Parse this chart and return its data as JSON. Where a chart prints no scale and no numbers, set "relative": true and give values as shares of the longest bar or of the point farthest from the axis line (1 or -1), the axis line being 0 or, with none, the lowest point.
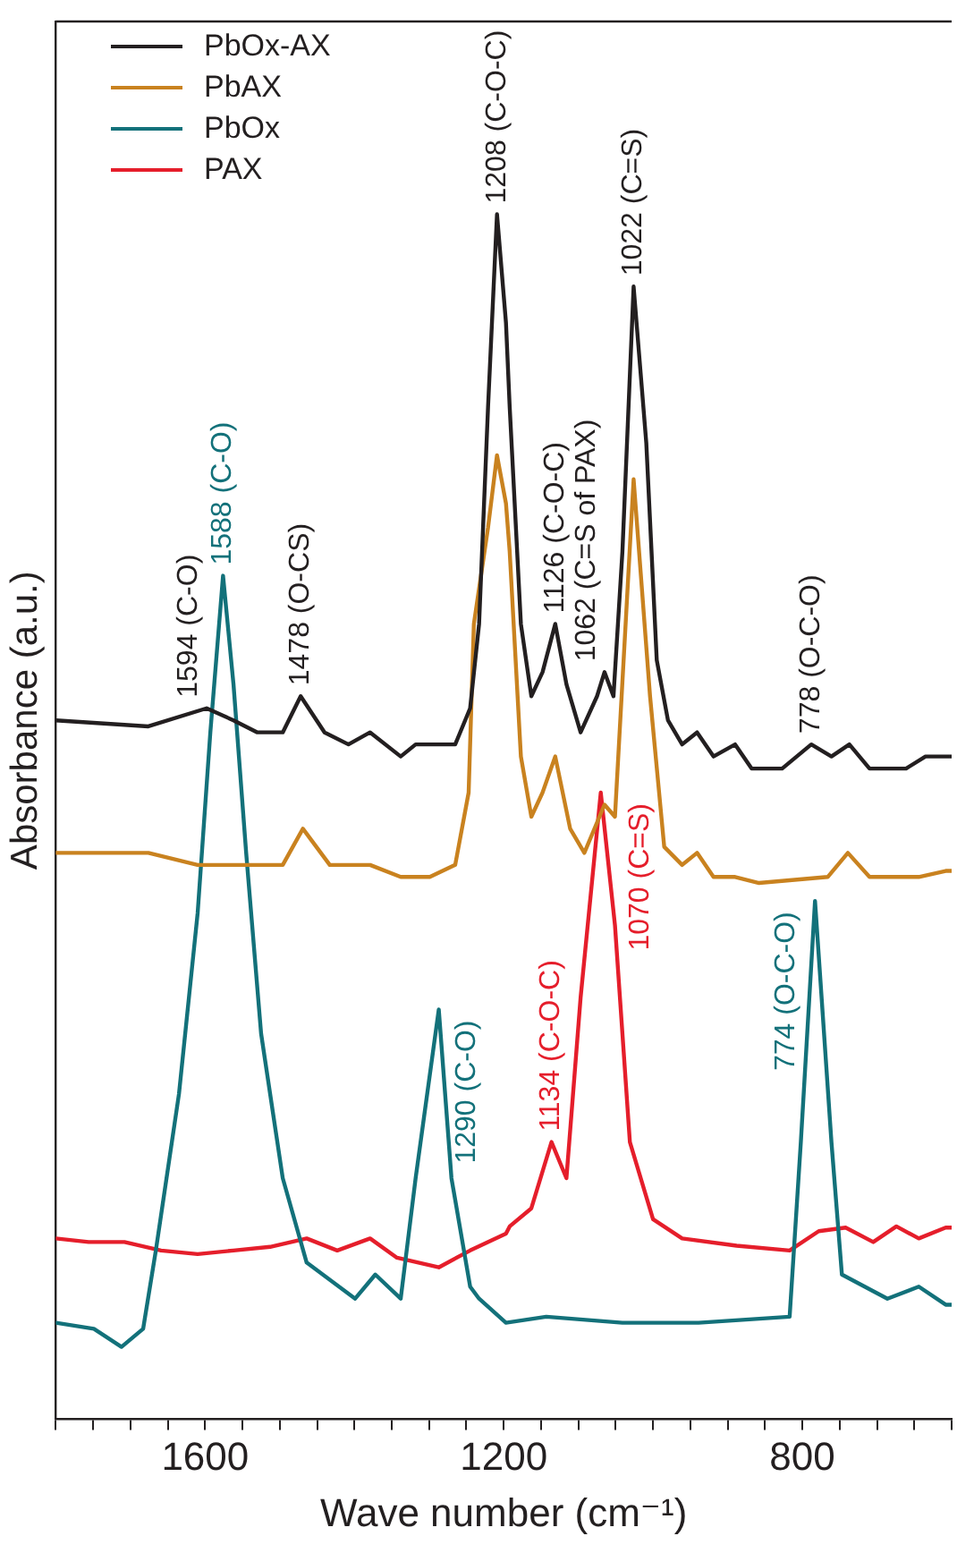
{
  "chart_data": {
    "type": "line",
    "xlabel": "Wave number (cm⁻¹)",
    "ylabel": "Absorbance (a.u.)",
    "relative": true,
    "legend": "top left",
    "tick_labels": "x",
    "xlim": [
      1800,
      600
    ],
    "xticks": [
      {
        "value": 1800,
        "label": null
      },
      {
        "value": 1750,
        "label": null
      },
      {
        "value": 1700,
        "label": null
      },
      {
        "value": 1650,
        "label": null
      },
      1600,
      {
        "value": 1550,
        "label": null
      },
      {
        "value": 1500,
        "label": null
      },
      {
        "value": 1450,
        "label": null
      },
      {
        "value": 1400,
        "label": null
      },
      {
        "value": 1350,
        "label": null
      },
      {
        "value": 1300,
        "label": null
      },
      {
        "value": 1250,
        "label": null
      },
      1200,
      {
        "value": 1150,
        "label": null
      },
      {
        "value": 1100,
        "label": null
      },
      {
        "value": 1050,
        "label": null
      },
      {
        "value": 1000,
        "label": null
      },
      {
        "value": 950,
        "label": null
      },
      {
        "value": 900,
        "label": null
      },
      {
        "value": 850,
        "label": null
      },
      800,
      {
        "value": 750,
        "label": null
      },
      {
        "value": 700,
        "label": null
      },
      {
        "value": 650,
        "label": null
      },
      {
        "value": 600,
        "label": null
      }
    ],
    "series": [
      {
        "name": "PbOx-AX",
        "color": "#231f20",
        "x": [
          1800,
          1676,
          1598,
          1562,
          1530,
          1496,
          1472,
          1440,
          1408,
          1379,
          1338,
          1318,
          1301,
          1265,
          1245,
          1233,
          1221,
          1209,
          1197,
          1192,
          1177,
          1163,
          1148,
          1131,
          1116,
          1097,
          1075,
          1065,
          1053,
          1041,
          1026,
          1009,
          995,
          980,
          961,
          941,
          919,
          890,
          868,
          827,
          788,
          761,
          737,
          710,
          661,
          635,
          608,
          600
        ],
        "values": [
          0.58,
          0.575,
          0.59,
          0.58,
          0.57,
          0.57,
          0.6,
          0.57,
          0.56,
          0.57,
          0.55,
          0.56,
          0.56,
          0.56,
          0.59,
          0.66,
          0.84,
          1.0,
          0.91,
          0.84,
          0.66,
          0.6,
          0.62,
          0.66,
          0.61,
          0.57,
          0.6,
          0.62,
          0.6,
          0.72,
          0.94,
          0.81,
          0.63,
          0.58,
          0.56,
          0.57,
          0.55,
          0.56,
          0.54,
          0.54,
          0.56,
          0.55,
          0.56,
          0.54,
          0.54,
          0.55,
          0.55,
          0.55
        ]
      },
      {
        "name": "PbAX",
        "color": "#c9821f",
        "x": [
          1800,
          1676,
          1610,
          1562,
          1496,
          1469,
          1433,
          1379,
          1338,
          1318,
          1299,
          1265,
          1247,
          1240,
          1221,
          1209,
          1197,
          1192,
          1177,
          1163,
          1148,
          1131,
          1111,
          1092,
          1065,
          1051,
          1026,
          1004,
          985,
          961,
          941,
          919,
          890,
          858,
          766,
          739,
          710,
          676,
          644,
          608,
          600
        ],
        "values": [
          0.47,
          0.47,
          0.46,
          0.46,
          0.46,
          0.49,
          0.46,
          0.46,
          0.45,
          0.45,
          0.45,
          0.46,
          0.52,
          0.66,
          0.74,
          0.8,
          0.76,
          0.72,
          0.55,
          0.5,
          0.52,
          0.55,
          0.49,
          0.47,
          0.51,
          0.5,
          0.78,
          0.6,
          0.475,
          0.46,
          0.47,
          0.45,
          0.45,
          0.445,
          0.45,
          0.47,
          0.45,
          0.45,
          0.45,
          0.455,
          0.455
        ]
      },
      {
        "name": "PbOx",
        "color": "#13717a",
        "x": [
          1800,
          1749,
          1712,
          1683,
          1666,
          1635,
          1610,
          1593,
          1576,
          1562,
          1545,
          1525,
          1496,
          1464,
          1399,
          1372,
          1338,
          1318,
          1287,
          1270,
          1245,
          1233,
          1197,
          1143,
          1041,
          939,
          817,
          802,
          783,
          761,
          747,
          686,
          644,
          608,
          600
        ],
        "values": [
          0.08,
          0.075,
          0.06,
          0.075,
          0.14,
          0.27,
          0.42,
          0.57,
          0.7,
          0.61,
          0.47,
          0.32,
          0.2,
          0.13,
          0.1,
          0.12,
          0.1,
          0.2,
          0.34,
          0.2,
          0.11,
          0.1,
          0.08,
          0.085,
          0.08,
          0.08,
          0.085,
          0.23,
          0.43,
          0.23,
          0.12,
          0.1,
          0.11,
          0.095,
          0.095
        ]
      },
      {
        "name": "PAX",
        "color": "#e51e2b",
        "x": [
          1800,
          1756,
          1708,
          1659,
          1610,
          1562,
          1513,
          1464,
          1423,
          1379,
          1343,
          1287,
          1245,
          1197,
          1192,
          1163,
          1136,
          1116,
          1097,
          1070,
          1051,
          1031,
          1000,
          961,
          888,
          817,
          778,
          742,
          705,
          674,
          644,
          608,
          600
        ],
        "values": [
          0.15,
          0.147,
          0.147,
          0.14,
          0.137,
          0.14,
          0.143,
          0.15,
          0.14,
          0.15,
          0.134,
          0.126,
          0.14,
          0.154,
          0.16,
          0.175,
          0.23,
          0.2,
          0.35,
          0.52,
          0.41,
          0.23,
          0.166,
          0.15,
          0.144,
          0.14,
          0.156,
          0.159,
          0.147,
          0.16,
          0.15,
          0.159,
          0.159
        ]
      }
    ],
    "annotations": [
      {
        "text": "1594 (C-O)",
        "x": 1598,
        "y": 0.59
      },
      {
        "text": "1588 (C-O)",
        "x": 1576,
        "y": 0.7
      },
      {
        "text": "1478 (O-CS)",
        "x": 1472,
        "y": 0.6
      },
      {
        "text": "1208 (C-O-C)",
        "x": 1209,
        "y": 1.0
      },
      {
        "text": "1126 (C-O-C)",
        "x": 1131,
        "y": 0.66
      },
      {
        "text": "1062 (C=S of PAX)",
        "x": 1065,
        "y": 0.62
      },
      {
        "text": "1022 (C=S)",
        "x": 1026,
        "y": 0.94
      },
      {
        "text": "778 (O-C-O)",
        "x": 788,
        "y": 0.56
      },
      {
        "text": "1290 (C-O)",
        "x": 1287,
        "y": 0.34
      },
      {
        "text": "1134 (C-O-C)",
        "x": 1136,
        "y": 0.23
      },
      {
        "text": "1070 (C=S)",
        "x": 1070,
        "y": 0.52
      },
      {
        "text": "774 (O-C-O)",
        "x": 783,
        "y": 0.43
      }
    ]
  }
}
